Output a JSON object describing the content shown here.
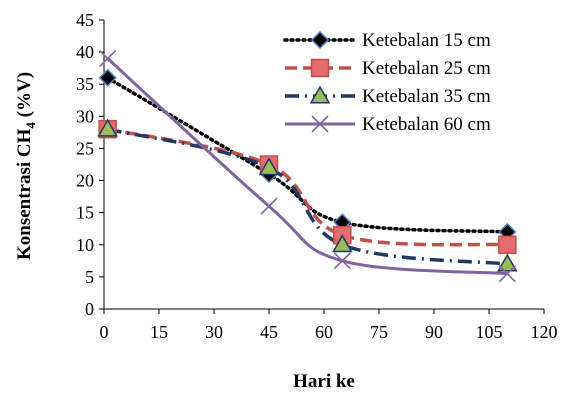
{
  "chart_data": {
    "type": "line",
    "title": "",
    "xlabel": "Hari ke",
    "ylabel": "Konsentrasi CH4 (%V)",
    "ylabel_parts": {
      "pre": "Konsentrasi CH",
      "sub": "4",
      "post": " (%V)"
    },
    "xlim": [
      0,
      120
    ],
    "ylim": [
      0,
      45
    ],
    "x_ticks": [
      0,
      15,
      30,
      45,
      60,
      75,
      90,
      105,
      120
    ],
    "y_ticks": [
      0,
      5,
      10,
      15,
      20,
      25,
      30,
      35,
      40,
      45
    ],
    "grid": false,
    "legend_position": "top-right",
    "x": [
      1,
      45,
      65,
      110
    ],
    "series": [
      {
        "name": "Ketebalan 15 cm",
        "values": [
          36,
          21,
          13.5,
          12
        ],
        "color": "#000000",
        "marker": "diamond",
        "line": "dotted"
      },
      {
        "name": "Ketebalan 25 cm",
        "values": [
          28,
          22.5,
          11.5,
          10
        ],
        "color": "#C0504D",
        "marker": "square",
        "line": "dashed"
      },
      {
        "name": "Ketebalan 35 cm",
        "values": [
          28,
          22,
          10,
          7
        ],
        "color": "#1F3864",
        "marker": "triangle",
        "line": "dash-dot"
      },
      {
        "name": "Ketebalan 60 cm",
        "values": [
          39,
          16,
          7.5,
          5.5
        ],
        "color": "#8064A2",
        "marker": "x",
        "line": "solid"
      }
    ]
  }
}
